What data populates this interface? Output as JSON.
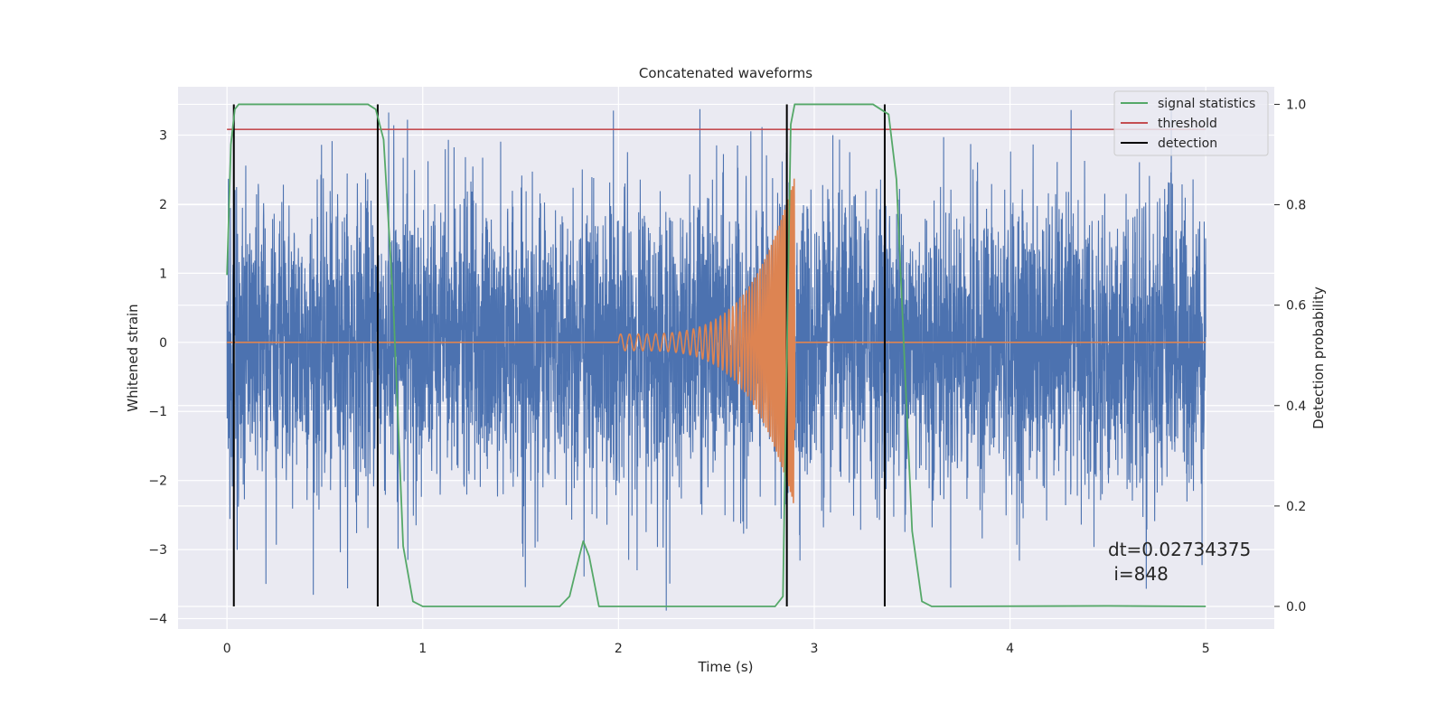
{
  "chart_data": {
    "type": "line",
    "title": "Concatenated waveforms",
    "xlabel": "Time (s)",
    "ylabel": "Whitened strain",
    "y2label": "Detection probability",
    "xlim": [
      -0.25,
      5.35
    ],
    "ylim": [
      -4.15,
      3.7
    ],
    "y2lim": [
      -0.045,
      1.035
    ],
    "xticks": [
      0,
      1,
      2,
      3,
      4,
      5
    ],
    "yticks": [
      -4,
      -3,
      -2,
      -1,
      0,
      1,
      2,
      3
    ],
    "y2ticks": [
      0.0,
      0.2,
      0.4,
      0.6,
      0.8,
      1.0
    ],
    "y2ticklabels": [
      "0.0",
      "0.2",
      "0.4",
      "0.6",
      "0.8",
      "1.0"
    ],
    "grid": true,
    "legend_position": "top-right",
    "series": [
      {
        "name": "",
        "axis": "left",
        "color": "#4c72b0",
        "description_values": "whitened strain noise, t from 0 to 5 s, amplitude mostly within ±2.5, peaks near ±3.4",
        "t_range": [
          0,
          5
        ],
        "envelope": 3.3
      },
      {
        "name": "",
        "axis": "left",
        "color": "#dd8452",
        "chirp_start": 2.0,
        "chirp_end": 2.9,
        "start_amplitude": 0.12,
        "peak_amplitude": 2.4,
        "t_range": [
          0,
          5
        ]
      },
      {
        "name": "signal statistics",
        "axis": "right",
        "color": "#55a868",
        "x": [
          0.0,
          0.02,
          0.04,
          0.06,
          0.08,
          0.72,
          0.76,
          0.8,
          0.85,
          0.9,
          0.95,
          1.0,
          1.7,
          1.75,
          1.8,
          1.82,
          1.85,
          1.9,
          2.8,
          2.84,
          2.86,
          2.88,
          2.9,
          3.3,
          3.38,
          3.42,
          3.46,
          3.5,
          3.55,
          3.6,
          4.5,
          5.0
        ],
        "values": [
          0.66,
          0.92,
          0.99,
          1.0,
          1.0,
          1.0,
          0.99,
          0.93,
          0.6,
          0.12,
          0.01,
          0.0,
          0.0,
          0.02,
          0.1,
          0.13,
          0.1,
          0.0,
          0.0,
          0.02,
          0.5,
          0.96,
          1.0,
          1.0,
          0.98,
          0.85,
          0.5,
          0.15,
          0.01,
          0.0,
          0.001,
          0.0
        ]
      },
      {
        "name": "threshold",
        "axis": "right",
        "color": "#c44e52",
        "x": [
          0.0,
          5.0
        ],
        "values": [
          0.95,
          0.95
        ]
      },
      {
        "name": "detection",
        "axis": "right",
        "color": "#000000",
        "x": [
          0.035,
          0.77,
          2.86,
          3.36
        ],
        "ymin": 0.0,
        "ymax": 1.0
      }
    ],
    "annotation": {
      "line1": "dt=0.02734375",
      "line2": " i=848",
      "x": 4.52,
      "y": -2.9
    }
  }
}
